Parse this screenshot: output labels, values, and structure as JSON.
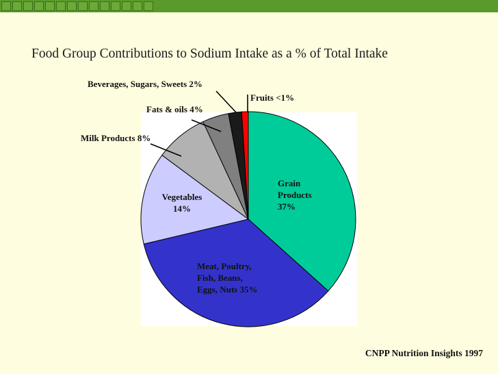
{
  "title": "Food Group Contributions to Sodium Intake as a % of Total Intake",
  "source": "CNPP Nutrition Insights 1997",
  "chart_data": {
    "type": "pie",
    "title": "Food Group Contributions to Sodium Intake as a % of Total Intake",
    "slices": [
      {
        "label": "Grain Products 37%",
        "lines": [
          "Grain",
          "Products",
          "37%"
        ],
        "value": 37,
        "color": "#00cc99"
      },
      {
        "label": "Meat, Poultry, Fish, Beans, Eggs, Nuts 35%",
        "lines": [
          "Meat, Poultry,",
          "Fish, Beans,",
          "Eggs, Nuts  35%"
        ],
        "value": 35,
        "color": "#3333cc"
      },
      {
        "label": "Vegetables 14%",
        "lines": [
          "Vegetables",
          "14%"
        ],
        "value": 14,
        "color": "#ccccff"
      },
      {
        "label": "Milk Products 8%",
        "lines": [
          "Milk Products 8%"
        ],
        "value": 8,
        "color": "#b2b2b2"
      },
      {
        "label": "Fats & oils 4%",
        "lines": [
          "Fats & oils 4%"
        ],
        "value": 4,
        "color": "#808080"
      },
      {
        "label": "Beverages, Sugars, Sweets 2%",
        "lines": [
          "Beverages, Sugars, Sweets 2%"
        ],
        "value": 2,
        "color": "#1a1a1a"
      },
      {
        "label": "Fruits <1%",
        "lines": [
          "Fruits <1%"
        ],
        "value": 1,
        "color": "#ff0000"
      }
    ],
    "legend": "none"
  }
}
